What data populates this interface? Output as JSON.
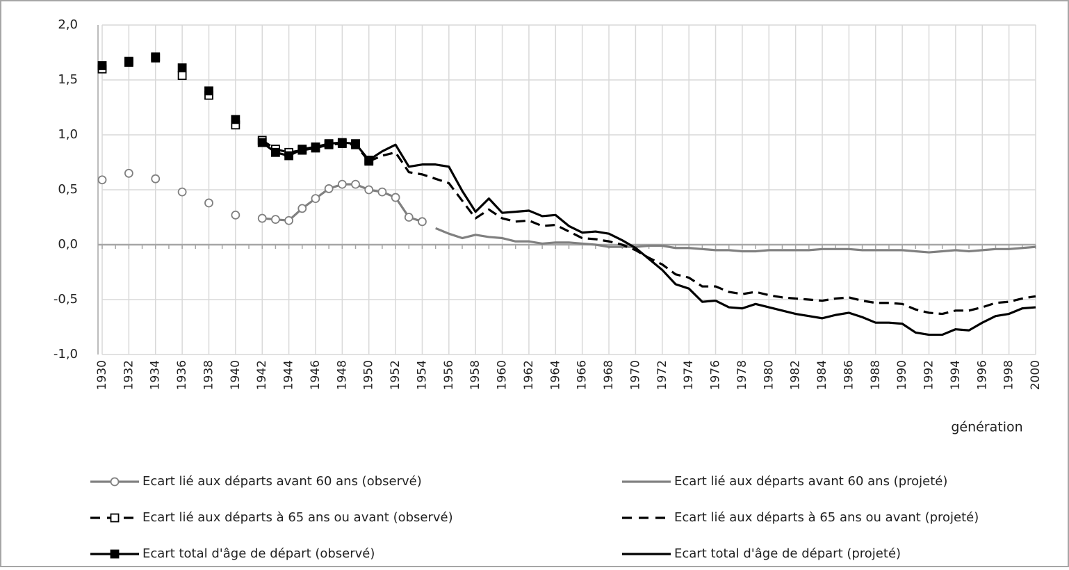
{
  "chart_data": {
    "type": "line",
    "x_label": "génération",
    "x": [
      1930,
      1931,
      1932,
      1933,
      1934,
      1935,
      1936,
      1937,
      1938,
      1939,
      1940,
      1941,
      1942,
      1943,
      1944,
      1945,
      1946,
      1947,
      1948,
      1949,
      1950,
      1951,
      1952,
      1953,
      1954,
      1955,
      1956,
      1957,
      1958,
      1959,
      1960,
      1961,
      1962,
      1963,
      1964,
      1965,
      1966,
      1967,
      1968,
      1969,
      1970,
      1971,
      1972,
      1973,
      1974,
      1975,
      1976,
      1977,
      1978,
      1979,
      1980,
      1981,
      1982,
      1983,
      1984,
      1985,
      1986,
      1987,
      1988,
      1989,
      1990,
      1991,
      1992,
      1993,
      1994,
      1995,
      1996,
      1997,
      1998,
      1999,
      2000
    ],
    "xlim": [
      1930,
      2000
    ],
    "xticks": [
      1930,
      1932,
      1934,
      1936,
      1938,
      1940,
      1942,
      1944,
      1946,
      1948,
      1950,
      1952,
      1954,
      1956,
      1958,
      1960,
      1962,
      1964,
      1966,
      1968,
      1970,
      1972,
      1974,
      1976,
      1978,
      1980,
      1982,
      1984,
      1986,
      1988,
      1990,
      1992,
      1994,
      1996,
      1998,
      2000
    ],
    "ylim": [
      -1,
      2
    ],
    "yticks": [
      {
        "value": -1,
        "label": "-1,0"
      },
      {
        "value": -0.5,
        "label": "-0,5"
      },
      {
        "value": 0,
        "label": "0,0"
      },
      {
        "value": 0.5,
        "label": "0,5"
      },
      {
        "value": 1,
        "label": "1,0"
      },
      {
        "value": 1.5,
        "label": "1,5"
      },
      {
        "value": 2,
        "label": "2,0"
      }
    ],
    "grid": true,
    "series": [
      {
        "name": "Ecart lié aux départs avant 60 ans (observé)",
        "color": "#808080",
        "dash": false,
        "marker": "circle-open",
        "values": [
          0.59,
          null,
          0.65,
          null,
          0.6,
          null,
          0.48,
          null,
          0.38,
          null,
          0.27,
          null,
          0.24,
          0.23,
          0.22,
          0.33,
          0.42,
          0.51,
          0.55,
          0.55,
          0.5,
          0.48,
          0.43,
          0.25,
          0.21,
          null,
          null,
          null,
          null,
          null,
          null,
          null,
          null,
          null,
          null,
          null,
          null,
          null,
          null,
          null,
          null,
          null,
          null,
          null,
          null,
          null,
          null,
          null,
          null,
          null,
          null,
          null,
          null,
          null,
          null,
          null,
          null,
          null,
          null,
          null,
          null,
          null,
          null,
          null,
          null,
          null,
          null,
          null,
          null,
          null,
          null
        ]
      },
      {
        "name": "Ecart lié aux départs avant 60 ans (projeté)",
        "color": "#808080",
        "dash": false,
        "marker": "none",
        "values": [
          null,
          null,
          null,
          null,
          null,
          null,
          null,
          null,
          null,
          null,
          null,
          null,
          null,
          null,
          null,
          null,
          null,
          null,
          null,
          null,
          null,
          null,
          null,
          null,
          null,
          0.15,
          0.1,
          0.06,
          0.09,
          0.07,
          0.06,
          0.03,
          0.03,
          0.01,
          0.02,
          0.02,
          0.01,
          0.0,
          -0.02,
          -0.02,
          -0.02,
          -0.01,
          -0.01,
          -0.03,
          -0.03,
          -0.04,
          -0.05,
          -0.05,
          -0.06,
          -0.06,
          -0.05,
          -0.05,
          -0.05,
          -0.05,
          -0.04,
          -0.04,
          -0.04,
          -0.05,
          -0.05,
          -0.05,
          -0.05,
          -0.06,
          -0.07,
          -0.06,
          -0.05,
          -0.06,
          -0.05,
          -0.04,
          -0.04,
          -0.03,
          -0.02
        ]
      },
      {
        "name": "Ecart lié aux départs à 65 ans ou avant (observé)",
        "color": "#000000",
        "dash": true,
        "marker": "square-open",
        "values": [
          1.6,
          null,
          1.66,
          null,
          1.7,
          null,
          1.54,
          null,
          1.36,
          null,
          1.09,
          null,
          0.95,
          0.87,
          0.84,
          0.86,
          0.88,
          0.91,
          0.92,
          0.91,
          0.76,
          null,
          null,
          null,
          null,
          null,
          null,
          null,
          null,
          null,
          null,
          null,
          null,
          null,
          null,
          null,
          null,
          null,
          null,
          null,
          null,
          null,
          null,
          null,
          null,
          null,
          null,
          null,
          null,
          null,
          null,
          null,
          null,
          null,
          null,
          null,
          null,
          null,
          null,
          null,
          null,
          null,
          null,
          null,
          null,
          null,
          null,
          null,
          null,
          null,
          null
        ]
      },
      {
        "name": "Ecart lié aux départs à 65 ans ou avant (projeté)",
        "color": "#000000",
        "dash": true,
        "marker": "none",
        "values": [
          null,
          null,
          null,
          null,
          null,
          null,
          null,
          null,
          null,
          null,
          null,
          null,
          null,
          null,
          null,
          null,
          null,
          null,
          null,
          null,
          0.76,
          0.81,
          0.84,
          0.66,
          0.64,
          0.6,
          0.56,
          0.4,
          0.24,
          0.32,
          0.24,
          0.21,
          0.22,
          0.17,
          0.18,
          0.12,
          0.06,
          0.05,
          0.03,
          0.0,
          -0.05,
          -0.12,
          -0.18,
          -0.27,
          -0.3,
          -0.38,
          -0.38,
          -0.43,
          -0.45,
          -0.43,
          -0.46,
          -0.48,
          -0.49,
          -0.5,
          -0.51,
          -0.49,
          -0.48,
          -0.51,
          -0.53,
          -0.53,
          -0.54,
          -0.59,
          -0.62,
          -0.63,
          -0.6,
          -0.6,
          -0.57,
          -0.53,
          -0.52,
          -0.49,
          -0.47
        ]
      },
      {
        "name": "Ecart total d'âge de départ (observé)",
        "color": "#000000",
        "dash": false,
        "marker": "square-filled",
        "values": [
          1.63,
          null,
          1.67,
          null,
          1.71,
          null,
          1.61,
          null,
          1.4,
          null,
          1.14,
          null,
          0.93,
          0.84,
          0.81,
          0.87,
          0.89,
          0.92,
          0.93,
          0.92,
          0.77,
          null,
          null,
          null,
          null,
          null,
          null,
          null,
          null,
          null,
          null,
          null,
          null,
          null,
          null,
          null,
          null,
          null,
          null,
          null,
          null,
          null,
          null,
          null,
          null,
          null,
          null,
          null,
          null,
          null,
          null,
          null,
          null,
          null,
          null,
          null,
          null,
          null,
          null,
          null,
          null,
          null,
          null,
          null,
          null,
          null,
          null,
          null,
          null,
          null,
          null
        ]
      },
      {
        "name": "Ecart total d'âge de départ (projeté)",
        "color": "#000000",
        "dash": false,
        "marker": "none",
        "values": [
          null,
          null,
          null,
          null,
          null,
          null,
          null,
          null,
          null,
          null,
          null,
          null,
          null,
          null,
          null,
          null,
          null,
          null,
          null,
          null,
          0.77,
          0.85,
          0.91,
          0.71,
          0.73,
          0.73,
          0.71,
          0.49,
          0.3,
          0.42,
          0.29,
          0.3,
          0.31,
          0.26,
          0.27,
          0.17,
          0.11,
          0.12,
          0.1,
          0.04,
          -0.03,
          -0.13,
          -0.23,
          -0.36,
          -0.4,
          -0.52,
          -0.51,
          -0.57,
          -0.58,
          -0.54,
          -0.57,
          -0.6,
          -0.63,
          -0.65,
          -0.67,
          -0.64,
          -0.62,
          -0.66,
          -0.71,
          -0.71,
          -0.72,
          -0.8,
          -0.82,
          -0.82,
          -0.77,
          -0.78,
          -0.71,
          -0.65,
          -0.63,
          -0.58,
          -0.57
        ]
      }
    ]
  }
}
